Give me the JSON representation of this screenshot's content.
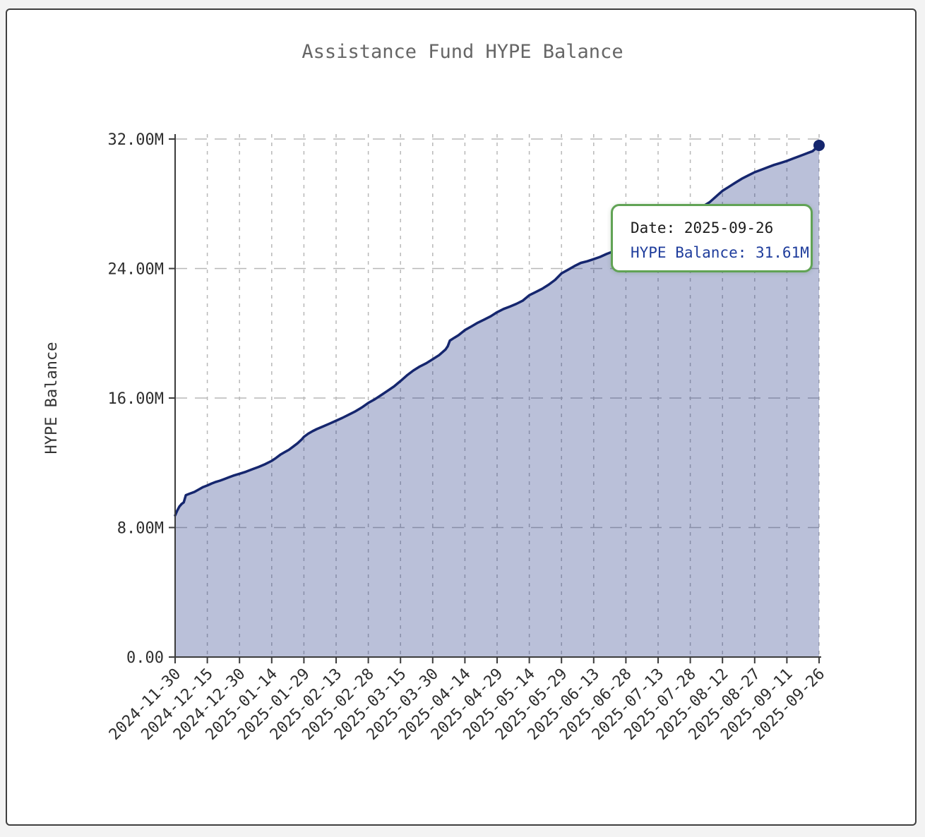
{
  "page": {
    "background_color": "#f3f3f3",
    "card_background": "#ffffff",
    "card_border_color": "#3f3f3f"
  },
  "chart_data": {
    "type": "area",
    "title": "Assistance Fund HYPE Balance",
    "xlabel": "",
    "ylabel": "HYPE Balance",
    "legend_position": "none",
    "grid": true,
    "ylim_millions": [
      0,
      32
    ],
    "x_span_days": 300,
    "x_tick_labels": [
      "2024-11-30",
      "2024-12-15",
      "2024-12-30",
      "2025-01-14",
      "2025-01-29",
      "2025-02-13",
      "2025-02-28",
      "2025-03-15",
      "2025-03-30",
      "2025-04-14",
      "2025-04-29",
      "2025-05-14",
      "2025-05-29",
      "2025-06-13",
      "2025-06-28",
      "2025-07-13",
      "2025-07-28",
      "2025-08-12",
      "2025-08-27",
      "2025-09-11",
      "2025-09-26"
    ],
    "y_tick_labels": [
      "0.00",
      "8.00M",
      "16.00M",
      "24.00M",
      "32.00M"
    ],
    "series": [
      {
        "name": "HYPE Balance",
        "unit": "millions of HYPE",
        "points_day_value_millions": [
          [
            0,
            8.75
          ],
          [
            1,
            9.05
          ],
          [
            2,
            9.3
          ],
          [
            3,
            9.45
          ],
          [
            4,
            9.55
          ],
          [
            5,
            10.0
          ],
          [
            7,
            10.1
          ],
          [
            9,
            10.2
          ],
          [
            11,
            10.35
          ],
          [
            13,
            10.5
          ],
          [
            15,
            10.6
          ],
          [
            17,
            10.72
          ],
          [
            19,
            10.82
          ],
          [
            21,
            10.9
          ],
          [
            23,
            11.0
          ],
          [
            25,
            11.1
          ],
          [
            27,
            11.2
          ],
          [
            30,
            11.32
          ],
          [
            33,
            11.45
          ],
          [
            36,
            11.6
          ],
          [
            39,
            11.75
          ],
          [
            42,
            11.92
          ],
          [
            45,
            12.12
          ],
          [
            47,
            12.3
          ],
          [
            49,
            12.5
          ],
          [
            51,
            12.65
          ],
          [
            53,
            12.8
          ],
          [
            55,
            13.0
          ],
          [
            57,
            13.2
          ],
          [
            59,
            13.45
          ],
          [
            60,
            13.6
          ],
          [
            62,
            13.8
          ],
          [
            64,
            13.95
          ],
          [
            66,
            14.08
          ],
          [
            69,
            14.25
          ],
          [
            72,
            14.42
          ],
          [
            75,
            14.6
          ],
          [
            78,
            14.78
          ],
          [
            81,
            14.98
          ],
          [
            84,
            15.18
          ],
          [
            87,
            15.42
          ],
          [
            90,
            15.7
          ],
          [
            93,
            15.92
          ],
          [
            96,
            16.18
          ],
          [
            99,
            16.45
          ],
          [
            102,
            16.72
          ],
          [
            105,
            17.05
          ],
          [
            108,
            17.4
          ],
          [
            111,
            17.7
          ],
          [
            114,
            17.95
          ],
          [
            117,
            18.15
          ],
          [
            120,
            18.4
          ],
          [
            123,
            18.65
          ],
          [
            126,
            19.0
          ],
          [
            127,
            19.2
          ],
          [
            128,
            19.55
          ],
          [
            130,
            19.72
          ],
          [
            132,
            19.88
          ],
          [
            135,
            20.2
          ],
          [
            138,
            20.42
          ],
          [
            141,
            20.65
          ],
          [
            144,
            20.85
          ],
          [
            147,
            21.05
          ],
          [
            150,
            21.3
          ],
          [
            153,
            21.5
          ],
          [
            156,
            21.65
          ],
          [
            159,
            21.82
          ],
          [
            162,
            22.02
          ],
          [
            165,
            22.35
          ],
          [
            168,
            22.55
          ],
          [
            171,
            22.75
          ],
          [
            174,
            23.0
          ],
          [
            177,
            23.3
          ],
          [
            180,
            23.7
          ],
          [
            183,
            23.92
          ],
          [
            186,
            24.15
          ],
          [
            189,
            24.35
          ],
          [
            192,
            24.45
          ],
          [
            195,
            24.58
          ],
          [
            198,
            24.72
          ],
          [
            201,
            24.9
          ],
          [
            204,
            25.05
          ],
          [
            207,
            25.25
          ],
          [
            210,
            25.45
          ],
          [
            213,
            25.62
          ],
          [
            216,
            25.8
          ],
          [
            219,
            25.98
          ],
          [
            222,
            26.15
          ],
          [
            225,
            26.35
          ],
          [
            228,
            26.55
          ],
          [
            231,
            26.75
          ],
          [
            234,
            26.95
          ],
          [
            237,
            27.12
          ],
          [
            240,
            27.35
          ],
          [
            243,
            27.6
          ],
          [
            246,
            27.85
          ],
          [
            249,
            28.1
          ],
          [
            252,
            28.45
          ],
          [
            255,
            28.8
          ],
          [
            258,
            29.05
          ],
          [
            261,
            29.3
          ],
          [
            264,
            29.55
          ],
          [
            267,
            29.75
          ],
          [
            270,
            29.95
          ],
          [
            273,
            30.1
          ],
          [
            276,
            30.25
          ],
          [
            279,
            30.4
          ],
          [
            282,
            30.52
          ],
          [
            285,
            30.65
          ],
          [
            288,
            30.8
          ],
          [
            291,
            30.95
          ],
          [
            294,
            31.1
          ],
          [
            297,
            31.25
          ],
          [
            300,
            31.61
          ]
        ]
      }
    ],
    "end_point": {
      "date": "2025-09-26",
      "value_millions": 31.61
    },
    "colors": {
      "line": "#15266e",
      "fill": "rgba(26,47,128,0.30)",
      "grid": "#b8b8b8",
      "axis": "#3c3c3c",
      "tick_text": "#2e2e2e",
      "title_text": "#666666",
      "marker": "#15266e"
    }
  },
  "tooltip": {
    "line1": "Date: 2025-09-26",
    "line2": "HYPE Balance: 31.61M",
    "border_color": "#61a355",
    "text_color": "#1c1c1c",
    "value_color": "#1f3d9c"
  }
}
